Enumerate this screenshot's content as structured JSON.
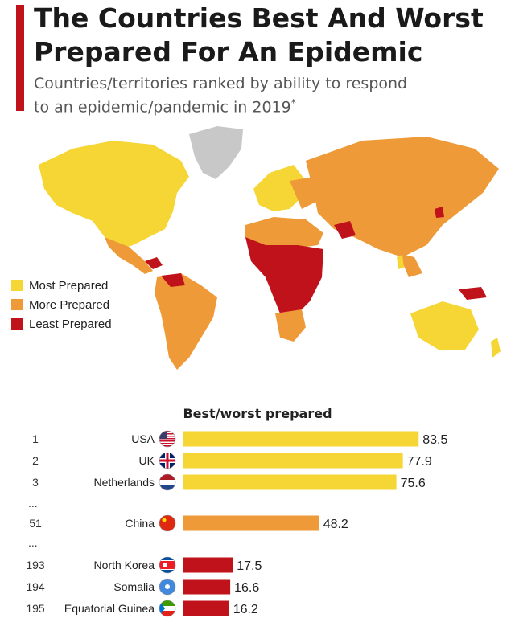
{
  "header": {
    "title_line1": "The Countries Best And Worst",
    "title_line2": "Prepared For An Epidemic",
    "subtitle_line1": "Countries/territories ranked by ability to respond",
    "subtitle_line2": "to an epidemic/pandemic in 2019",
    "subtitle_mark": "*"
  },
  "colors": {
    "most": "#f5d635",
    "more": "#ee9a38",
    "least": "#c0121b",
    "nodata": "#c8c8c8",
    "accent": "#c0121b"
  },
  "legend": [
    {
      "label": "Most Prepared",
      "color": "#f5d635"
    },
    {
      "label": "More Prepared",
      "color": "#ee9a38"
    },
    {
      "label": "Least Prepared",
      "color": "#c0121b"
    }
  ],
  "chart_data": {
    "type": "bar",
    "title": "Best/worst prepared",
    "orientation": "horizontal",
    "xlim": [
      0,
      100
    ],
    "rows": [
      {
        "rank": "1",
        "name": "USA",
        "value": 83.5,
        "category": "most",
        "flag": "usa-flag"
      },
      {
        "rank": "2",
        "name": "UK",
        "value": 77.9,
        "category": "most",
        "flag": "uk-flag"
      },
      {
        "rank": "3",
        "name": "Netherlands",
        "value": 75.6,
        "category": "most",
        "flag": "netherlands-flag"
      },
      {
        "ellipsis": "..."
      },
      {
        "rank": "51",
        "name": "China",
        "value": 48.2,
        "category": "more",
        "flag": "china-flag"
      },
      {
        "ellipsis": "..."
      },
      {
        "rank": "193",
        "name": "North Korea",
        "value": 17.5,
        "category": "least",
        "flag": "north-korea-flag"
      },
      {
        "rank": "194",
        "name": "Somalia",
        "value": 16.6,
        "category": "least",
        "flag": "somalia-flag"
      },
      {
        "rank": "195",
        "name": "Equatorial Guinea",
        "value": 16.2,
        "category": "least",
        "flag": "equatorial-guinea-flag"
      }
    ]
  }
}
